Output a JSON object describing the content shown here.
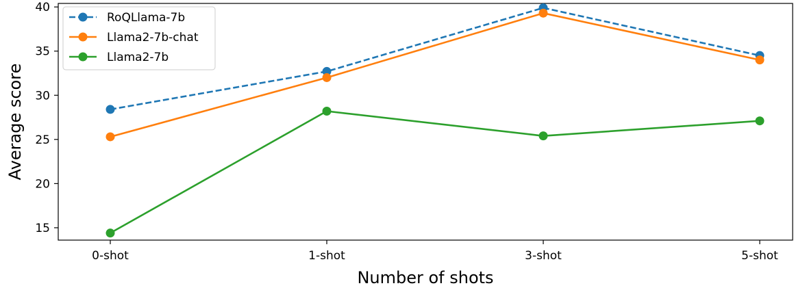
{
  "chart_data": {
    "type": "line",
    "title": "",
    "xlabel": "Number of shots",
    "ylabel": "Average score",
    "categories": [
      "0-shot",
      "1-shot",
      "3-shot",
      "5-shot"
    ],
    "ylim": [
      13.6,
      40.4
    ],
    "yticks": [
      15,
      20,
      25,
      30,
      35,
      40
    ],
    "grid": false,
    "legend_position": "top-left",
    "series": [
      {
        "name": "RoQLlama-7b",
        "values": [
          28.4,
          32.7,
          39.9,
          34.5
        ],
        "color": "#1f77b4",
        "linestyle": "dashed",
        "marker": "circle"
      },
      {
        "name": "Llama2-7b-chat",
        "values": [
          25.3,
          32.0,
          39.3,
          34.0
        ],
        "color": "#ff7f0e",
        "linestyle": "solid",
        "marker": "circle"
      },
      {
        "name": "Llama2-7b",
        "values": [
          14.4,
          28.2,
          25.4,
          27.1
        ],
        "color": "#2ca02c",
        "linestyle": "solid",
        "marker": "circle"
      }
    ]
  }
}
